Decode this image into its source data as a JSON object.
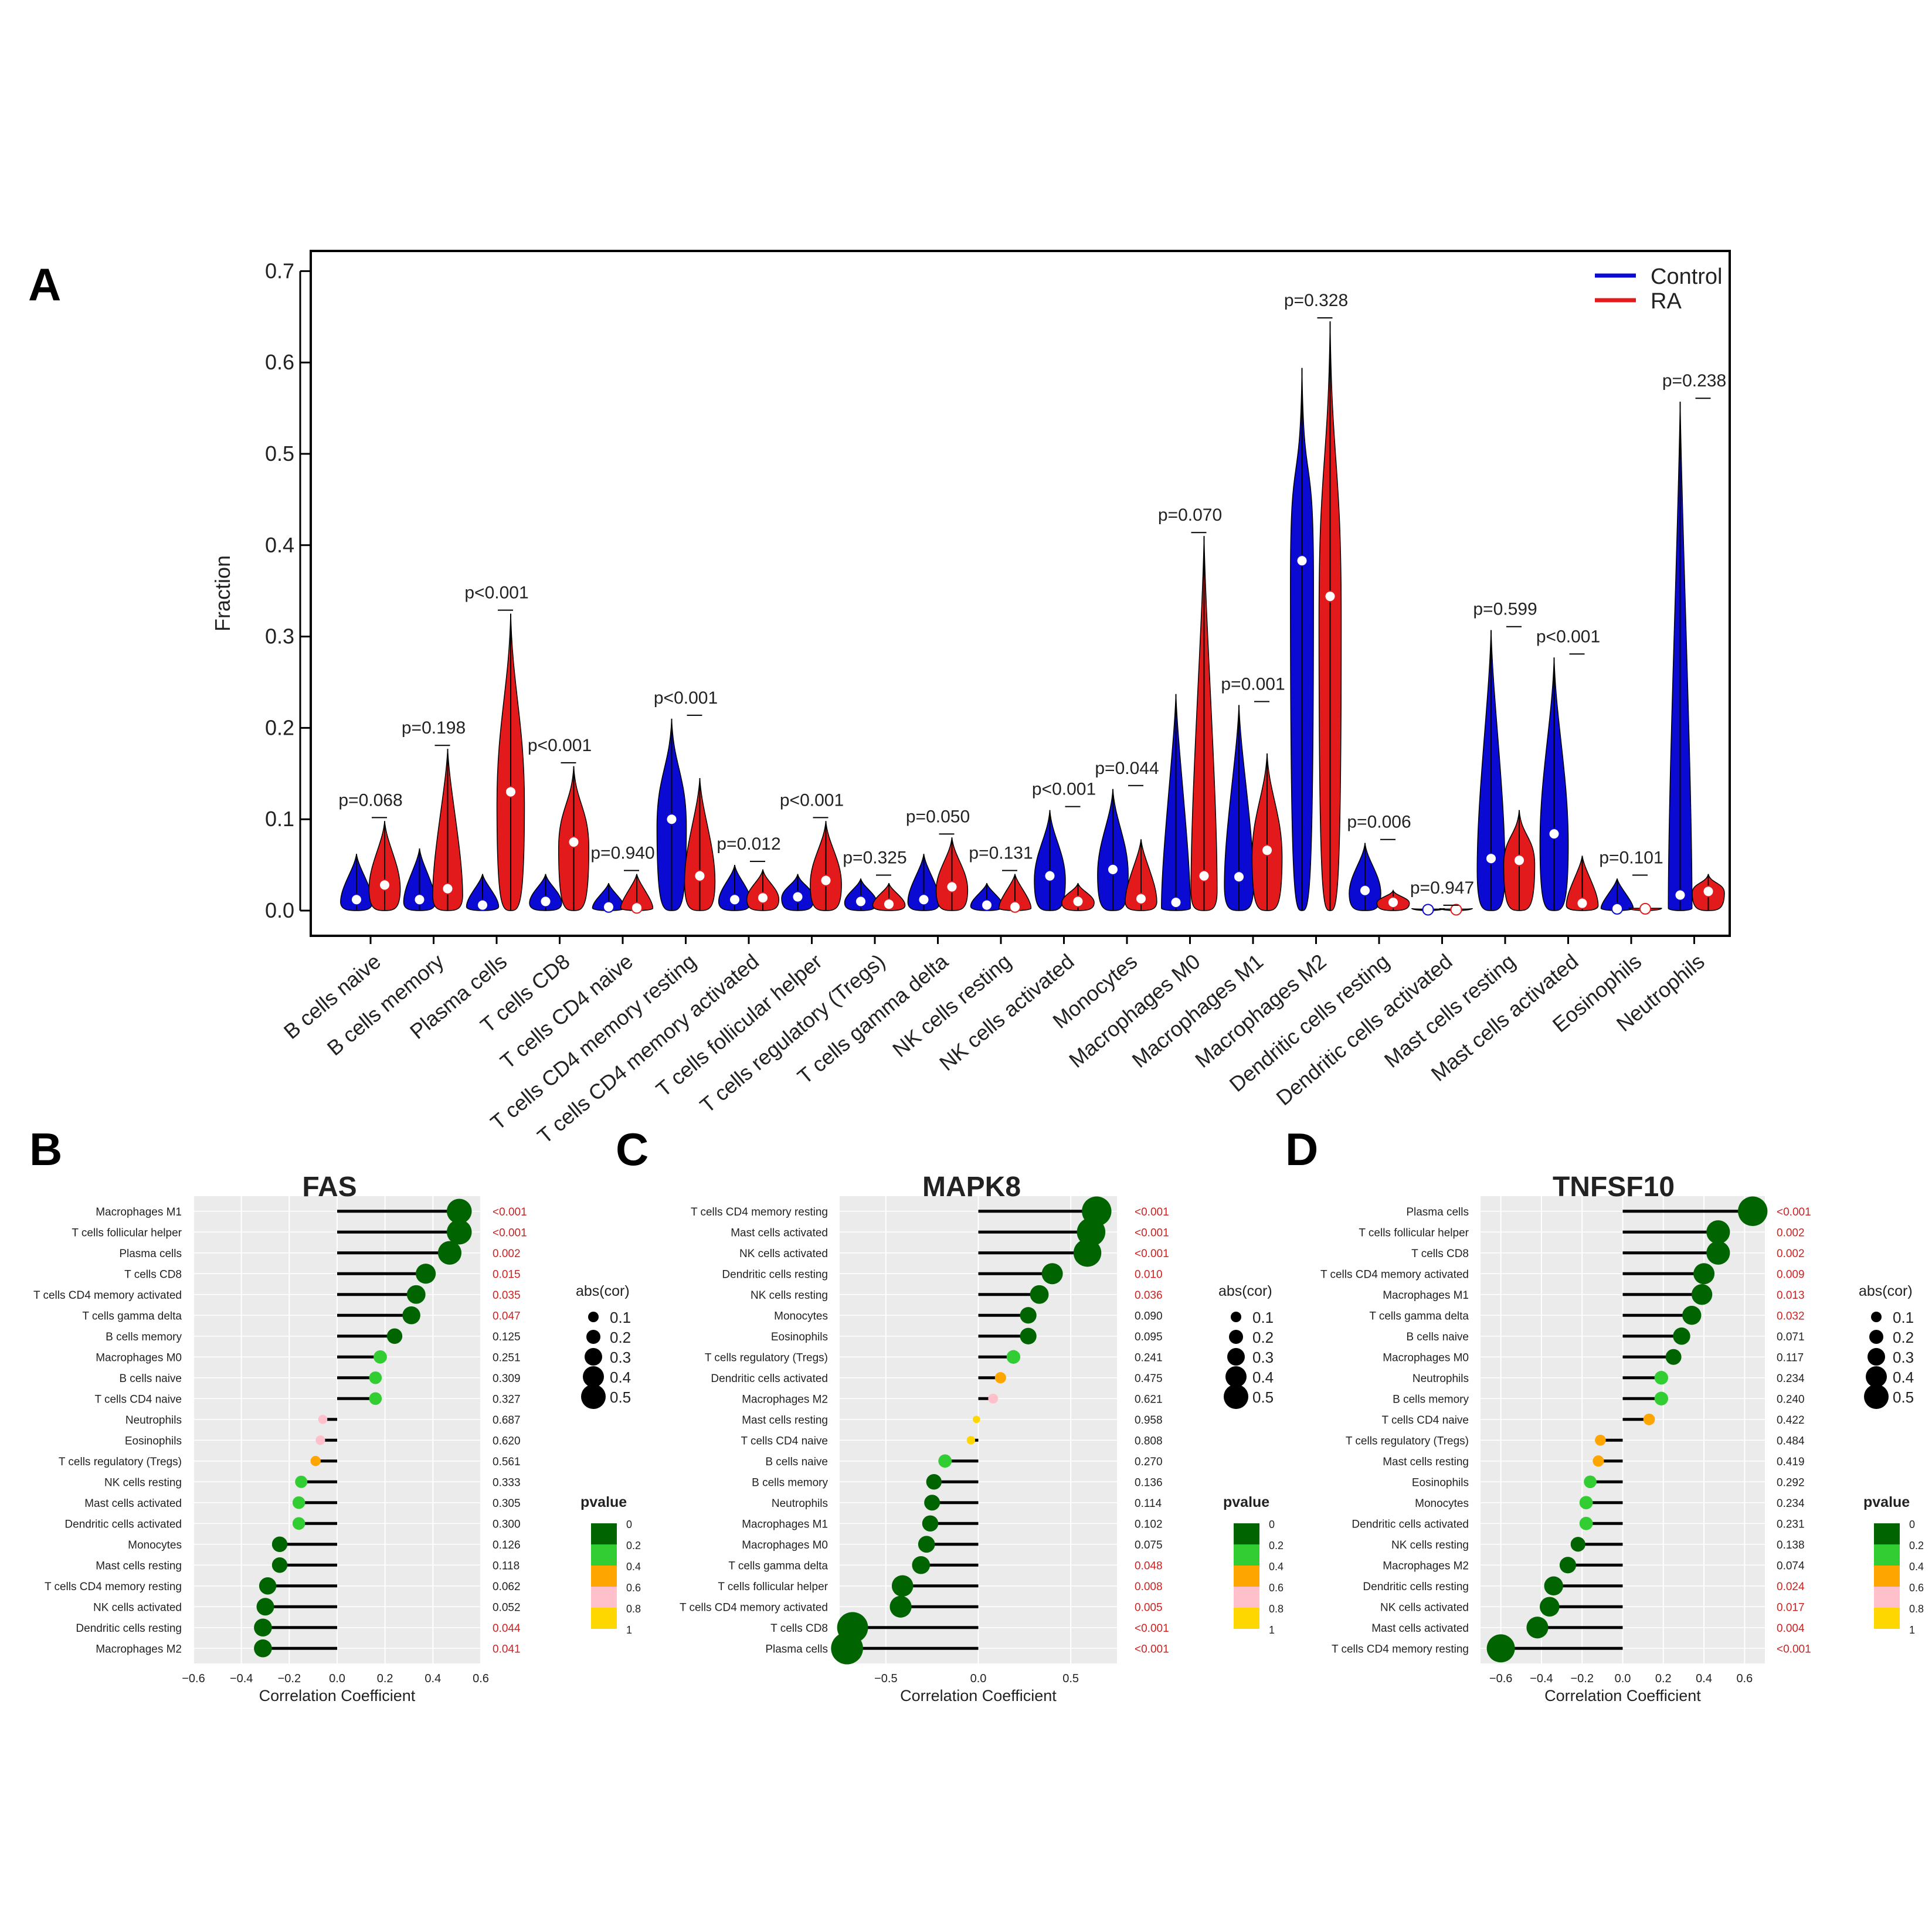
{
  "figure": {
    "panels": {
      "A": "A",
      "B": "B",
      "C": "C",
      "D": "D"
    },
    "colors": {
      "control": "#0a0ad2",
      "ra": "#e31a1c",
      "p_significant": "#cc2222",
      "p_normal": "#222222",
      "panel_bg": "#ebebeb",
      "pvalue_scale": [
        "#006400",
        "#32cd32",
        "#ffa500",
        "#ffc0cb",
        "#ffd700"
      ]
    }
  },
  "chart_data": [
    {
      "type": "violin",
      "panel": "A",
      "ylabel": "Fraction",
      "ylim": [
        0,
        0.7
      ],
      "yticks": [
        "0.0",
        "0.1",
        "0.2",
        "0.3",
        "0.4",
        "0.5",
        "0.6",
        "0.7"
      ],
      "legend": {
        "position": "top-right",
        "entries": [
          "Control",
          "RA"
        ]
      },
      "categories": [
        "B cells naive",
        "B cells memory",
        "Plasma cells",
        "T cells CD8",
        "T cells CD4 naive",
        "T cells CD4 memory resting",
        "T cells CD4 memory activated",
        "T cells follicular helper",
        "T cells regulatory (Tregs)",
        "T cells gamma delta",
        "NK cells resting",
        "NK cells activated",
        "Monocytes",
        "Macrophages M0",
        "Macrophages M1",
        "Macrophages M2",
        "Dendritic cells resting",
        "Dendritic cells activated",
        "Mast cells resting",
        "Mast cells activated",
        "Eosinophils",
        "Neutrophils"
      ],
      "p_values": [
        "p=0.068",
        "p=0.198",
        "p<0.001",
        "p<0.001",
        "p=0.940",
        "p<0.001",
        "p=0.012",
        "p<0.001",
        "p=0.325",
        "p=0.050",
        "p=0.131",
        "p<0.001",
        "p=0.044",
        "p=0.070",
        "p=0.001",
        "p=0.328",
        "p=0.006",
        "p=0.947",
        "p=0.599",
        "p<0.001",
        "p=0.101",
        "p=0.238"
      ],
      "series": [
        {
          "name": "Control",
          "median": [
            0.012,
            0.012,
            0.006,
            0.01,
            0.004,
            0.1,
            0.012,
            0.015,
            0.01,
            0.012,
            0.006,
            0.038,
            0.045,
            0.009,
            0.037,
            0.383,
            0.022,
            0.001,
            0.057,
            0.084,
            0.002,
            0.017
          ],
          "max": [
            0.062,
            0.068,
            0.04,
            0.04,
            0.03,
            0.21,
            0.05,
            0.04,
            0.035,
            0.062,
            0.03,
            0.11,
            0.133,
            0.237,
            0.225,
            0.594,
            0.074,
            0.002,
            0.307,
            0.277,
            0.035,
            0.557
          ]
        },
        {
          "name": "RA",
          "median": [
            0.028,
            0.024,
            0.13,
            0.075,
            0.003,
            0.038,
            0.014,
            0.033,
            0.007,
            0.026,
            0.004,
            0.01,
            0.013,
            0.038,
            0.066,
            0.344,
            0.009,
            0.001,
            0.055,
            0.008,
            0.002,
            0.021
          ],
          "max": [
            0.098,
            0.177,
            0.325,
            0.158,
            0.04,
            0.145,
            0.045,
            0.098,
            0.03,
            0.08,
            0.04,
            0.03,
            0.078,
            0.41,
            0.172,
            0.645,
            0.022,
            0.002,
            0.11,
            0.06,
            0.003,
            0.04
          ]
        }
      ]
    },
    {
      "type": "lollipop",
      "panel": "B",
      "title": "FAS",
      "xlabel": "Correlation Coefficient",
      "xlim": [
        -0.6,
        0.6
      ],
      "xticks": [
        "−0.6",
        "−0.4",
        "−0.2",
        "0.0",
        "0.2",
        "0.4",
        "0.6"
      ],
      "legend_size_title": "abs(cor)",
      "legend_size_labels": [
        "0.1",
        "0.2",
        "0.3",
        "0.4",
        "0.5"
      ],
      "legend_color_title": "pvalue",
      "legend_color_labels": [
        "0",
        "0.2",
        "0.4",
        "0.6",
        "0.8",
        "1"
      ],
      "rows": [
        {
          "cell": "Macrophages M1",
          "cor": 0.51,
          "p": "<0.001",
          "pv": 0.0
        },
        {
          "cell": "T cells follicular helper",
          "cor": 0.51,
          "p": "<0.001",
          "pv": 0.0
        },
        {
          "cell": "Plasma cells",
          "cor": 0.47,
          "p": "0.002",
          "pv": 0.002
        },
        {
          "cell": "T cells CD8",
          "cor": 0.37,
          "p": "0.015",
          "pv": 0.015
        },
        {
          "cell": "T cells CD4 memory activated",
          "cor": 0.33,
          "p": "0.035",
          "pv": 0.035
        },
        {
          "cell": "T cells gamma delta",
          "cor": 0.31,
          "p": "0.047",
          "pv": 0.047
        },
        {
          "cell": "B cells memory",
          "cor": 0.24,
          "p": "0.125",
          "pv": 0.125
        },
        {
          "cell": "Macrophages M0",
          "cor": 0.18,
          "p": "0.251",
          "pv": 0.251
        },
        {
          "cell": "B cells naive",
          "cor": 0.16,
          "p": "0.309",
          "pv": 0.309
        },
        {
          "cell": "T cells CD4 naive",
          "cor": 0.16,
          "p": "0.327",
          "pv": 0.327
        },
        {
          "cell": "Neutrophils",
          "cor": -0.06,
          "p": "0.687",
          "pv": 0.687
        },
        {
          "cell": "Eosinophils",
          "cor": -0.07,
          "p": "0.620",
          "pv": 0.62
        },
        {
          "cell": "T cells regulatory (Tregs)",
          "cor": -0.09,
          "p": "0.561",
          "pv": 0.561
        },
        {
          "cell": "NK cells resting",
          "cor": -0.15,
          "p": "0.333",
          "pv": 0.333
        },
        {
          "cell": "Mast cells activated",
          "cor": -0.16,
          "p": "0.305",
          "pv": 0.305
        },
        {
          "cell": "Dendritic cells activated",
          "cor": -0.16,
          "p": "0.300",
          "pv": 0.3
        },
        {
          "cell": "Monocytes",
          "cor": -0.24,
          "p": "0.126",
          "pv": 0.126
        },
        {
          "cell": "Mast cells resting",
          "cor": -0.24,
          "p": "0.118",
          "pv": 0.118
        },
        {
          "cell": "T cells CD4 memory resting",
          "cor": -0.29,
          "p": "0.062",
          "pv": 0.062
        },
        {
          "cell": "NK cells activated",
          "cor": -0.3,
          "p": "0.052",
          "pv": 0.052
        },
        {
          "cell": "Dendritic cells resting",
          "cor": -0.31,
          "p": "0.044",
          "pv": 0.044
        },
        {
          "cell": "Macrophages M2",
          "cor": -0.31,
          "p": "0.041",
          "pv": 0.041
        }
      ]
    },
    {
      "type": "lollipop",
      "panel": "C",
      "title": "MAPK8",
      "xlabel": "Correlation Coefficient",
      "xlim": [
        -0.75,
        0.75
      ],
      "xticks": [
        "−0.5",
        "0.0",
        "0.5"
      ],
      "legend_size_title": "abs(cor)",
      "legend_size_labels": [
        "0.1",
        "0.2",
        "0.3",
        "0.4",
        "0.5"
      ],
      "legend_color_title": "pvalue",
      "legend_color_labels": [
        "0",
        "0.2",
        "0.4",
        "0.6",
        "0.8",
        "1"
      ],
      "rows": [
        {
          "cell": "T cells CD4 memory resting",
          "cor": 0.64,
          "p": "<0.001",
          "pv": 0.0
        },
        {
          "cell": "Mast cells activated",
          "cor": 0.61,
          "p": "<0.001",
          "pv": 0.0
        },
        {
          "cell": "NK cells activated",
          "cor": 0.59,
          "p": "<0.001",
          "pv": 0.0
        },
        {
          "cell": "Dendritic cells resting",
          "cor": 0.4,
          "p": "0.010",
          "pv": 0.01
        },
        {
          "cell": "NK cells resting",
          "cor": 0.33,
          "p": "0.036",
          "pv": 0.036
        },
        {
          "cell": "Monocytes",
          "cor": 0.27,
          "p": "0.090",
          "pv": 0.09
        },
        {
          "cell": "Eosinophils",
          "cor": 0.27,
          "p": "0.095",
          "pv": 0.095
        },
        {
          "cell": "T cells regulatory (Tregs)",
          "cor": 0.19,
          "p": "0.241",
          "pv": 0.241
        },
        {
          "cell": "Dendritic cells activated",
          "cor": 0.12,
          "p": "0.475",
          "pv": 0.475
        },
        {
          "cell": "Macrophages M2",
          "cor": 0.08,
          "p": "0.621",
          "pv": 0.621
        },
        {
          "cell": "Mast cells resting",
          "cor": -0.01,
          "p": "0.958",
          "pv": 0.958
        },
        {
          "cell": "T cells CD4 naive",
          "cor": -0.04,
          "p": "0.808",
          "pv": 0.808
        },
        {
          "cell": "B cells naive",
          "cor": -0.18,
          "p": "0.270",
          "pv": 0.27
        },
        {
          "cell": "B cells memory",
          "cor": -0.24,
          "p": "0.136",
          "pv": 0.136
        },
        {
          "cell": "Neutrophils",
          "cor": -0.25,
          "p": "0.114",
          "pv": 0.114
        },
        {
          "cell": "Macrophages M1",
          "cor": -0.26,
          "p": "0.102",
          "pv": 0.102
        },
        {
          "cell": "Macrophages M0",
          "cor": -0.28,
          "p": "0.075",
          "pv": 0.075
        },
        {
          "cell": "T cells gamma delta",
          "cor": -0.31,
          "p": "0.048",
          "pv": 0.048
        },
        {
          "cell": "T cells follicular helper",
          "cor": -0.41,
          "p": "0.008",
          "pv": 0.008
        },
        {
          "cell": "T cells CD4 memory activated",
          "cor": -0.42,
          "p": "0.005",
          "pv": 0.005
        },
        {
          "cell": "T cells CD8",
          "cor": -0.68,
          "p": "<0.001",
          "pv": 0.0
        },
        {
          "cell": "Plasma cells",
          "cor": -0.71,
          "p": "<0.001",
          "pv": 0.0
        }
      ]
    },
    {
      "type": "lollipop",
      "panel": "D",
      "title": "TNFSF10",
      "xlabel": "Correlation Coefficient",
      "xlim": [
        -0.7,
        0.7
      ],
      "xticks": [
        "−0.6",
        "−0.4",
        "−0.2",
        "0.0",
        "0.2",
        "0.4",
        "0.6"
      ],
      "legend_size_title": "abs(cor)",
      "legend_size_labels": [
        "0.1",
        "0.2",
        "0.3",
        "0.4",
        "0.5"
      ],
      "legend_color_title": "pvalue",
      "legend_color_labels": [
        "0",
        "0.2",
        "0.4",
        "0.6",
        "0.8",
        "1"
      ],
      "rows": [
        {
          "cell": "Plasma cells",
          "cor": 0.64,
          "p": "<0.001",
          "pv": 0.0
        },
        {
          "cell": "T cells follicular helper",
          "cor": 0.47,
          "p": "0.002",
          "pv": 0.002
        },
        {
          "cell": "T cells CD8",
          "cor": 0.47,
          "p": "0.002",
          "pv": 0.002
        },
        {
          "cell": "T cells CD4 memory activated",
          "cor": 0.4,
          "p": "0.009",
          "pv": 0.009
        },
        {
          "cell": "Macrophages M1",
          "cor": 0.39,
          "p": "0.013",
          "pv": 0.013
        },
        {
          "cell": "T cells gamma delta",
          "cor": 0.34,
          "p": "0.032",
          "pv": 0.032
        },
        {
          "cell": "B cells naive",
          "cor": 0.29,
          "p": "0.071",
          "pv": 0.071
        },
        {
          "cell": "Macrophages M0",
          "cor": 0.25,
          "p": "0.117",
          "pv": 0.117
        },
        {
          "cell": "Neutrophils",
          "cor": 0.19,
          "p": "0.234",
          "pv": 0.234
        },
        {
          "cell": "B cells memory",
          "cor": 0.19,
          "p": "0.240",
          "pv": 0.24
        },
        {
          "cell": "T cells CD4 naive",
          "cor": 0.13,
          "p": "0.422",
          "pv": 0.422
        },
        {
          "cell": "T cells regulatory (Tregs)",
          "cor": -0.11,
          "p": "0.484",
          "pv": 0.484
        },
        {
          "cell": "Mast cells resting",
          "cor": -0.12,
          "p": "0.419",
          "pv": 0.419
        },
        {
          "cell": "Eosinophils",
          "cor": -0.16,
          "p": "0.292",
          "pv": 0.292
        },
        {
          "cell": "Monocytes",
          "cor": -0.18,
          "p": "0.234",
          "pv": 0.234
        },
        {
          "cell": "Dendritic cells activated",
          "cor": -0.18,
          "p": "0.231",
          "pv": 0.231
        },
        {
          "cell": "NK cells resting",
          "cor": -0.22,
          "p": "0.138",
          "pv": 0.138
        },
        {
          "cell": "Macrophages M2",
          "cor": -0.27,
          "p": "0.074",
          "pv": 0.074
        },
        {
          "cell": "Dendritic cells resting",
          "cor": -0.34,
          "p": "0.024",
          "pv": 0.024
        },
        {
          "cell": "NK cells activated",
          "cor": -0.36,
          "p": "0.017",
          "pv": 0.017
        },
        {
          "cell": "Mast cells activated",
          "cor": -0.42,
          "p": "0.004",
          "pv": 0.004
        },
        {
          "cell": "T cells CD4 memory resting",
          "cor": -0.6,
          "p": "<0.001",
          "pv": 0.0
        }
      ]
    }
  ]
}
